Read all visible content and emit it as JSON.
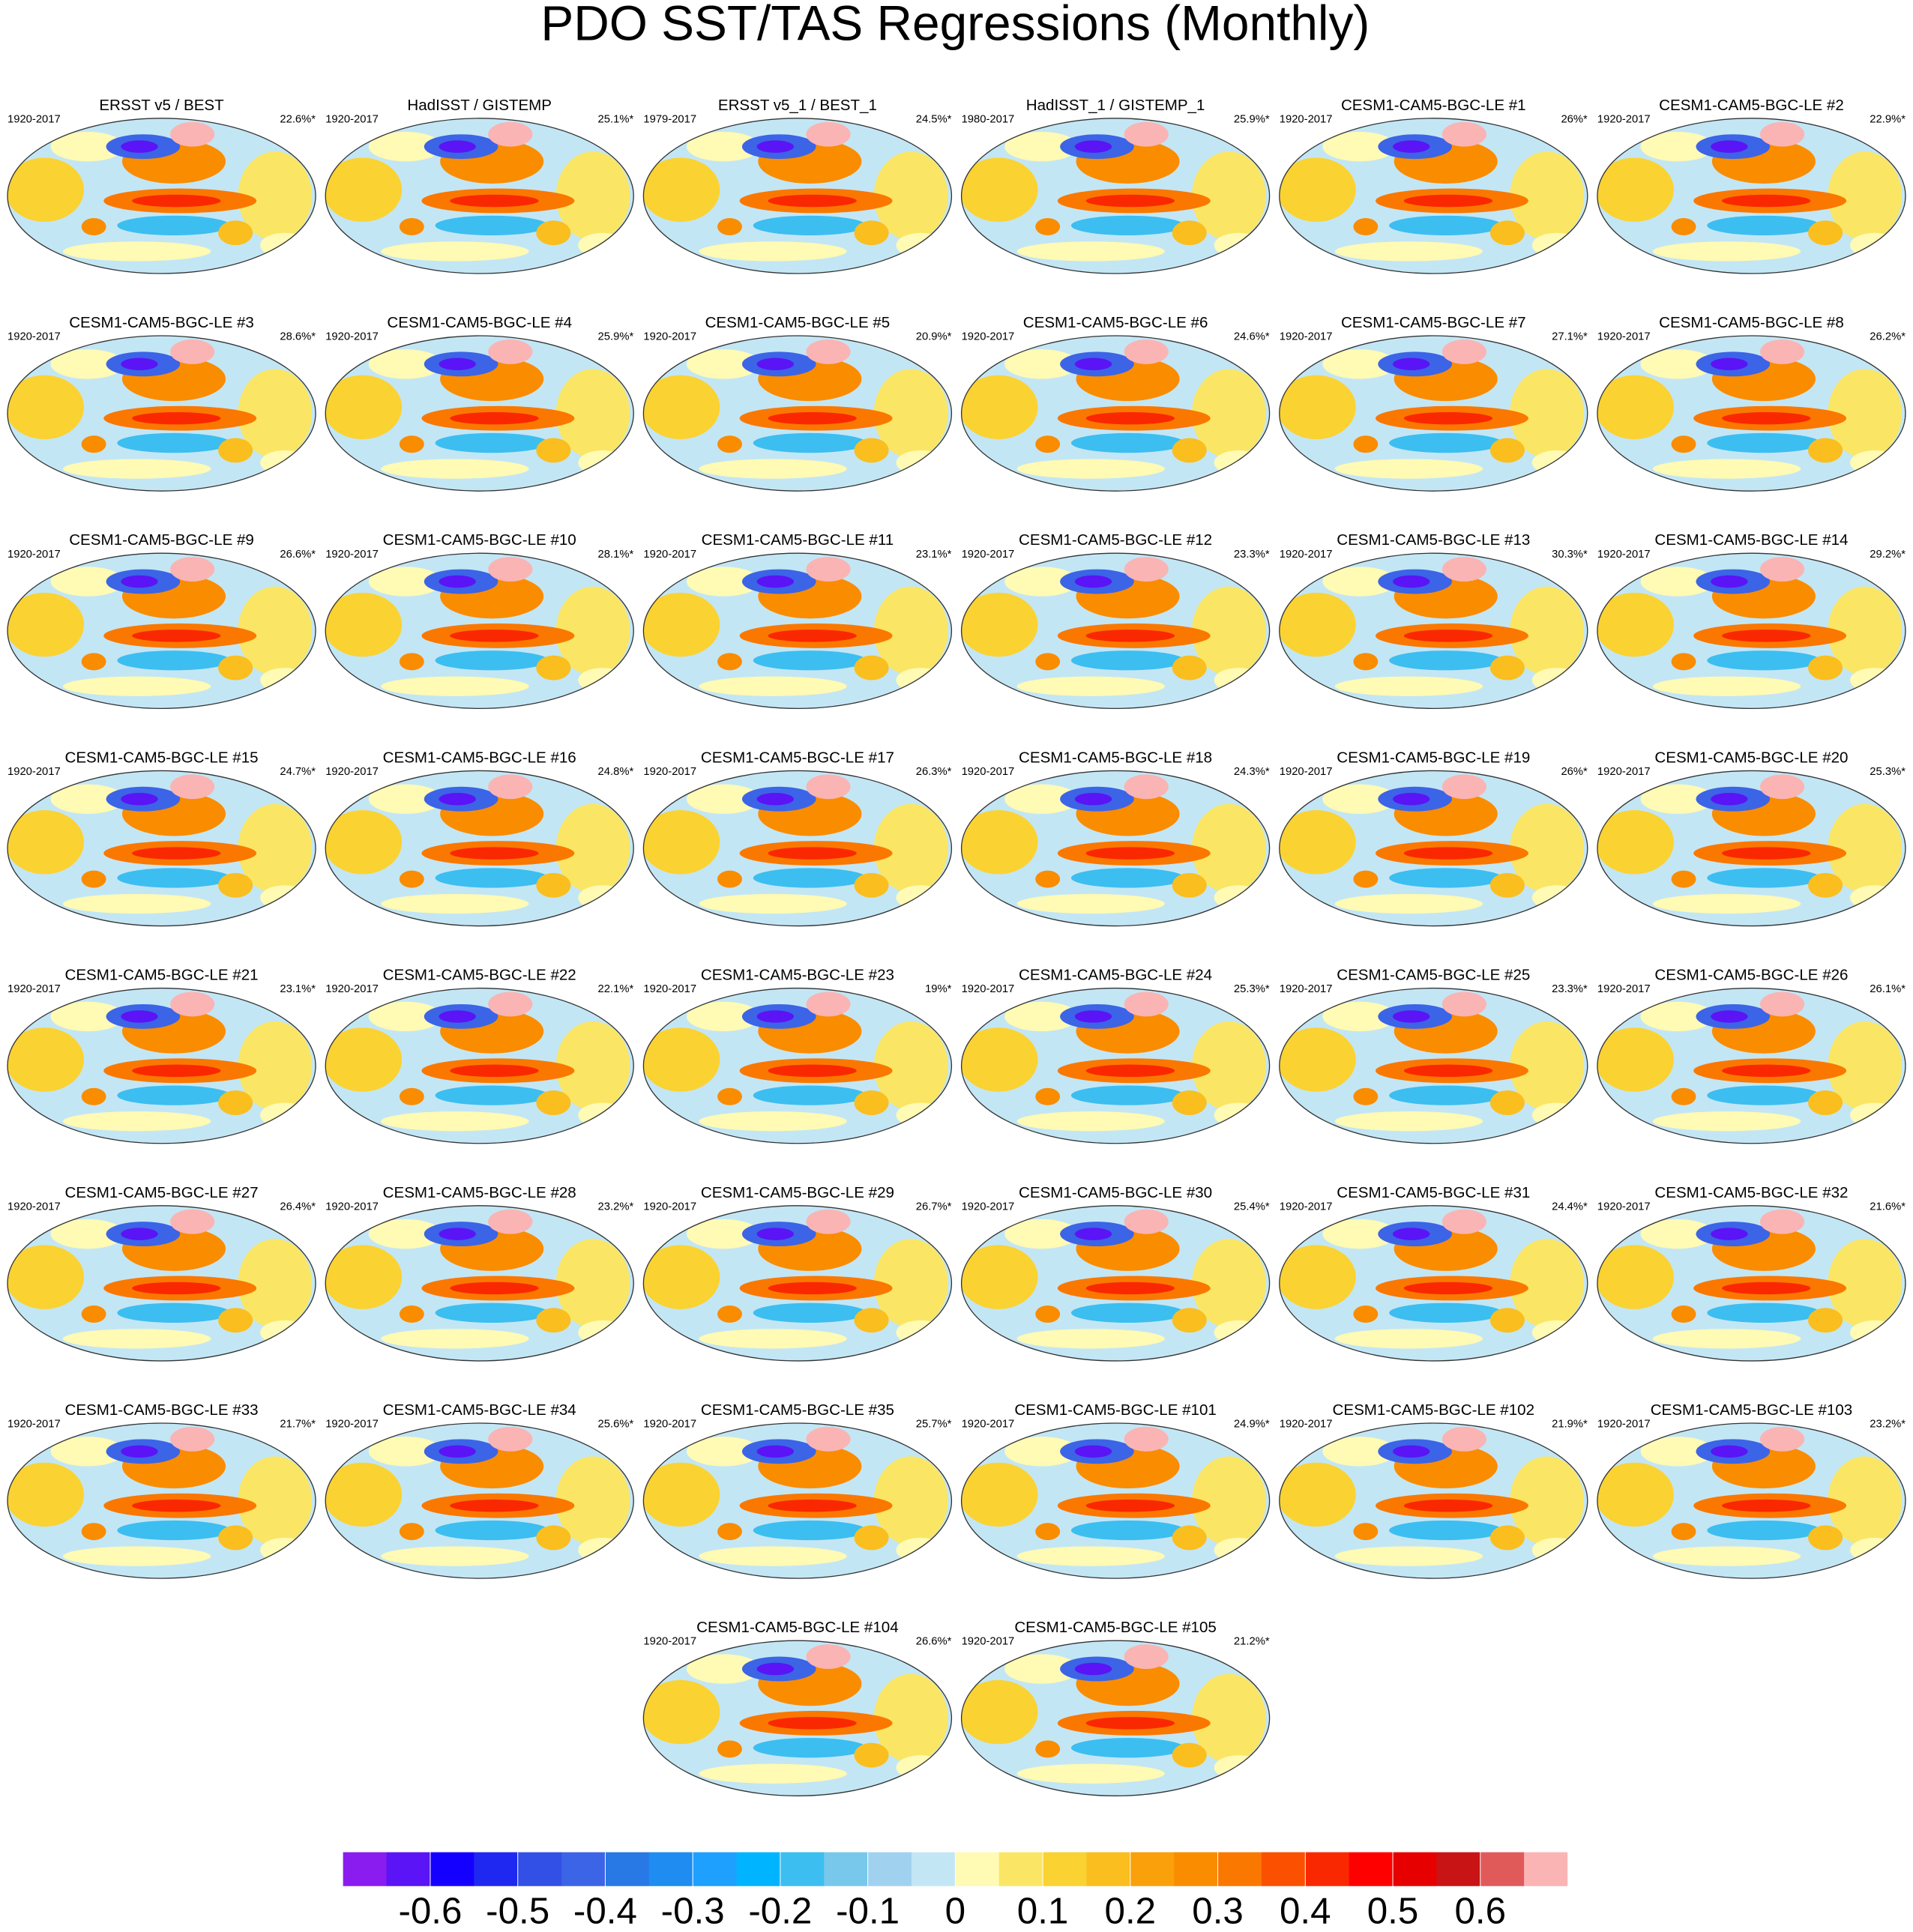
{
  "title": "PDO SST/TAS Regressions (Monthly)",
  "panels": [
    {
      "title": "ERSST v5 / BEST",
      "period": "1920-2017",
      "pct": "22.6%*"
    },
    {
      "title": "HadISST / GISTEMP",
      "period": "1920-2017",
      "pct": "25.1%*"
    },
    {
      "title": "ERSST v5_1 / BEST_1",
      "period": "1979-2017",
      "pct": "24.5%*"
    },
    {
      "title": "HadISST_1 / GISTEMP_1",
      "period": "1980-2017",
      "pct": "25.9%*"
    },
    {
      "title": "CESM1-CAM5-BGC-LE #1",
      "period": "1920-2017",
      "pct": "26%*"
    },
    {
      "title": "CESM1-CAM5-BGC-LE #2",
      "period": "1920-2017",
      "pct": "22.9%*"
    },
    {
      "title": "CESM1-CAM5-BGC-LE #3",
      "period": "1920-2017",
      "pct": "28.6%*"
    },
    {
      "title": "CESM1-CAM5-BGC-LE #4",
      "period": "1920-2017",
      "pct": "25.9%*"
    },
    {
      "title": "CESM1-CAM5-BGC-LE #5",
      "period": "1920-2017",
      "pct": "20.9%*"
    },
    {
      "title": "CESM1-CAM5-BGC-LE #6",
      "period": "1920-2017",
      "pct": "24.6%*"
    },
    {
      "title": "CESM1-CAM5-BGC-LE #7",
      "period": "1920-2017",
      "pct": "27.1%*"
    },
    {
      "title": "CESM1-CAM5-BGC-LE #8",
      "period": "1920-2017",
      "pct": "26.2%*"
    },
    {
      "title": "CESM1-CAM5-BGC-LE #9",
      "period": "1920-2017",
      "pct": "26.6%*"
    },
    {
      "title": "CESM1-CAM5-BGC-LE #10",
      "period": "1920-2017",
      "pct": "28.1%*"
    },
    {
      "title": "CESM1-CAM5-BGC-LE #11",
      "period": "1920-2017",
      "pct": "23.1%*"
    },
    {
      "title": "CESM1-CAM5-BGC-LE #12",
      "period": "1920-2017",
      "pct": "23.3%*"
    },
    {
      "title": "CESM1-CAM5-BGC-LE #13",
      "period": "1920-2017",
      "pct": "30.3%*"
    },
    {
      "title": "CESM1-CAM5-BGC-LE #14",
      "period": "1920-2017",
      "pct": "29.2%*"
    },
    {
      "title": "CESM1-CAM5-BGC-LE #15",
      "period": "1920-2017",
      "pct": "24.7%*"
    },
    {
      "title": "CESM1-CAM5-BGC-LE #16",
      "period": "1920-2017",
      "pct": "24.8%*"
    },
    {
      "title": "CESM1-CAM5-BGC-LE #17",
      "period": "1920-2017",
      "pct": "26.3%*"
    },
    {
      "title": "CESM1-CAM5-BGC-LE #18",
      "period": "1920-2017",
      "pct": "24.3%*"
    },
    {
      "title": "CESM1-CAM5-BGC-LE #19",
      "period": "1920-2017",
      "pct": "26%*"
    },
    {
      "title": "CESM1-CAM5-BGC-LE #20",
      "period": "1920-2017",
      "pct": "25.3%*"
    },
    {
      "title": "CESM1-CAM5-BGC-LE #21",
      "period": "1920-2017",
      "pct": "23.1%*"
    },
    {
      "title": "CESM1-CAM5-BGC-LE #22",
      "period": "1920-2017",
      "pct": "22.1%*"
    },
    {
      "title": "CESM1-CAM5-BGC-LE #23",
      "period": "1920-2017",
      "pct": "19%*"
    },
    {
      "title": "CESM1-CAM5-BGC-LE #24",
      "period": "1920-2017",
      "pct": "25.3%*"
    },
    {
      "title": "CESM1-CAM5-BGC-LE #25",
      "period": "1920-2017",
      "pct": "23.3%*"
    },
    {
      "title": "CESM1-CAM5-BGC-LE #26",
      "period": "1920-2017",
      "pct": "26.1%*"
    },
    {
      "title": "CESM1-CAM5-BGC-LE #27",
      "period": "1920-2017",
      "pct": "26.4%*"
    },
    {
      "title": "CESM1-CAM5-BGC-LE #28",
      "period": "1920-2017",
      "pct": "23.2%*"
    },
    {
      "title": "CESM1-CAM5-BGC-LE #29",
      "period": "1920-2017",
      "pct": "26.7%*"
    },
    {
      "title": "CESM1-CAM5-BGC-LE #30",
      "period": "1920-2017",
      "pct": "25.4%*"
    },
    {
      "title": "CESM1-CAM5-BGC-LE #31",
      "period": "1920-2017",
      "pct": "24.4%*"
    },
    {
      "title": "CESM1-CAM5-BGC-LE #32",
      "period": "1920-2017",
      "pct": "21.6%*"
    },
    {
      "title": "CESM1-CAM5-BGC-LE #33",
      "period": "1920-2017",
      "pct": "21.7%*"
    },
    {
      "title": "CESM1-CAM5-BGC-LE #34",
      "period": "1920-2017",
      "pct": "25.6%*"
    },
    {
      "title": "CESM1-CAM5-BGC-LE #35",
      "period": "1920-2017",
      "pct": "25.7%*"
    },
    {
      "title": "CESM1-CAM5-BGC-LE #101",
      "period": "1920-2017",
      "pct": "24.9%*"
    },
    {
      "title": "CESM1-CAM5-BGC-LE #102",
      "period": "1920-2017",
      "pct": "21.9%*"
    },
    {
      "title": "CESM1-CAM5-BGC-LE #103",
      "period": "1920-2017",
      "pct": "23.2%*"
    },
    {
      "title": "CESM1-CAM5-BGC-LE #104",
      "period": "1920-2017",
      "pct": "26.6%*"
    },
    {
      "title": "CESM1-CAM5-BGC-LE #105",
      "period": "1920-2017",
      "pct": "21.2%*"
    }
  ],
  "colorbar": {
    "xlim": [
      -0.7,
      0.7
    ],
    "xticks": [
      -0.6,
      -0.5,
      -0.4,
      -0.3,
      -0.2,
      -0.1,
      0,
      0.1,
      0.2,
      0.3,
      0.4,
      0.5,
      0.6
    ],
    "colors": [
      "#8a1cf0",
      "#5a14f5",
      "#1400ff",
      "#1e28f0",
      "#3250e6",
      "#3c64e6",
      "#2878e6",
      "#1e8cf0",
      "#1ea0ff",
      "#00b4ff",
      "#3cbef0",
      "#78c8eb",
      "#a0d2f0",
      "#c3e6f5",
      "#fffab4",
      "#fae664",
      "#fad232",
      "#fabe1e",
      "#faa00a",
      "#fa8c00",
      "#fa7800",
      "#fa5000",
      "#fa2800",
      "#ff0000",
      "#e60000",
      "#c81414",
      "#e15a5a",
      "#fab4b4"
    ]
  }
}
